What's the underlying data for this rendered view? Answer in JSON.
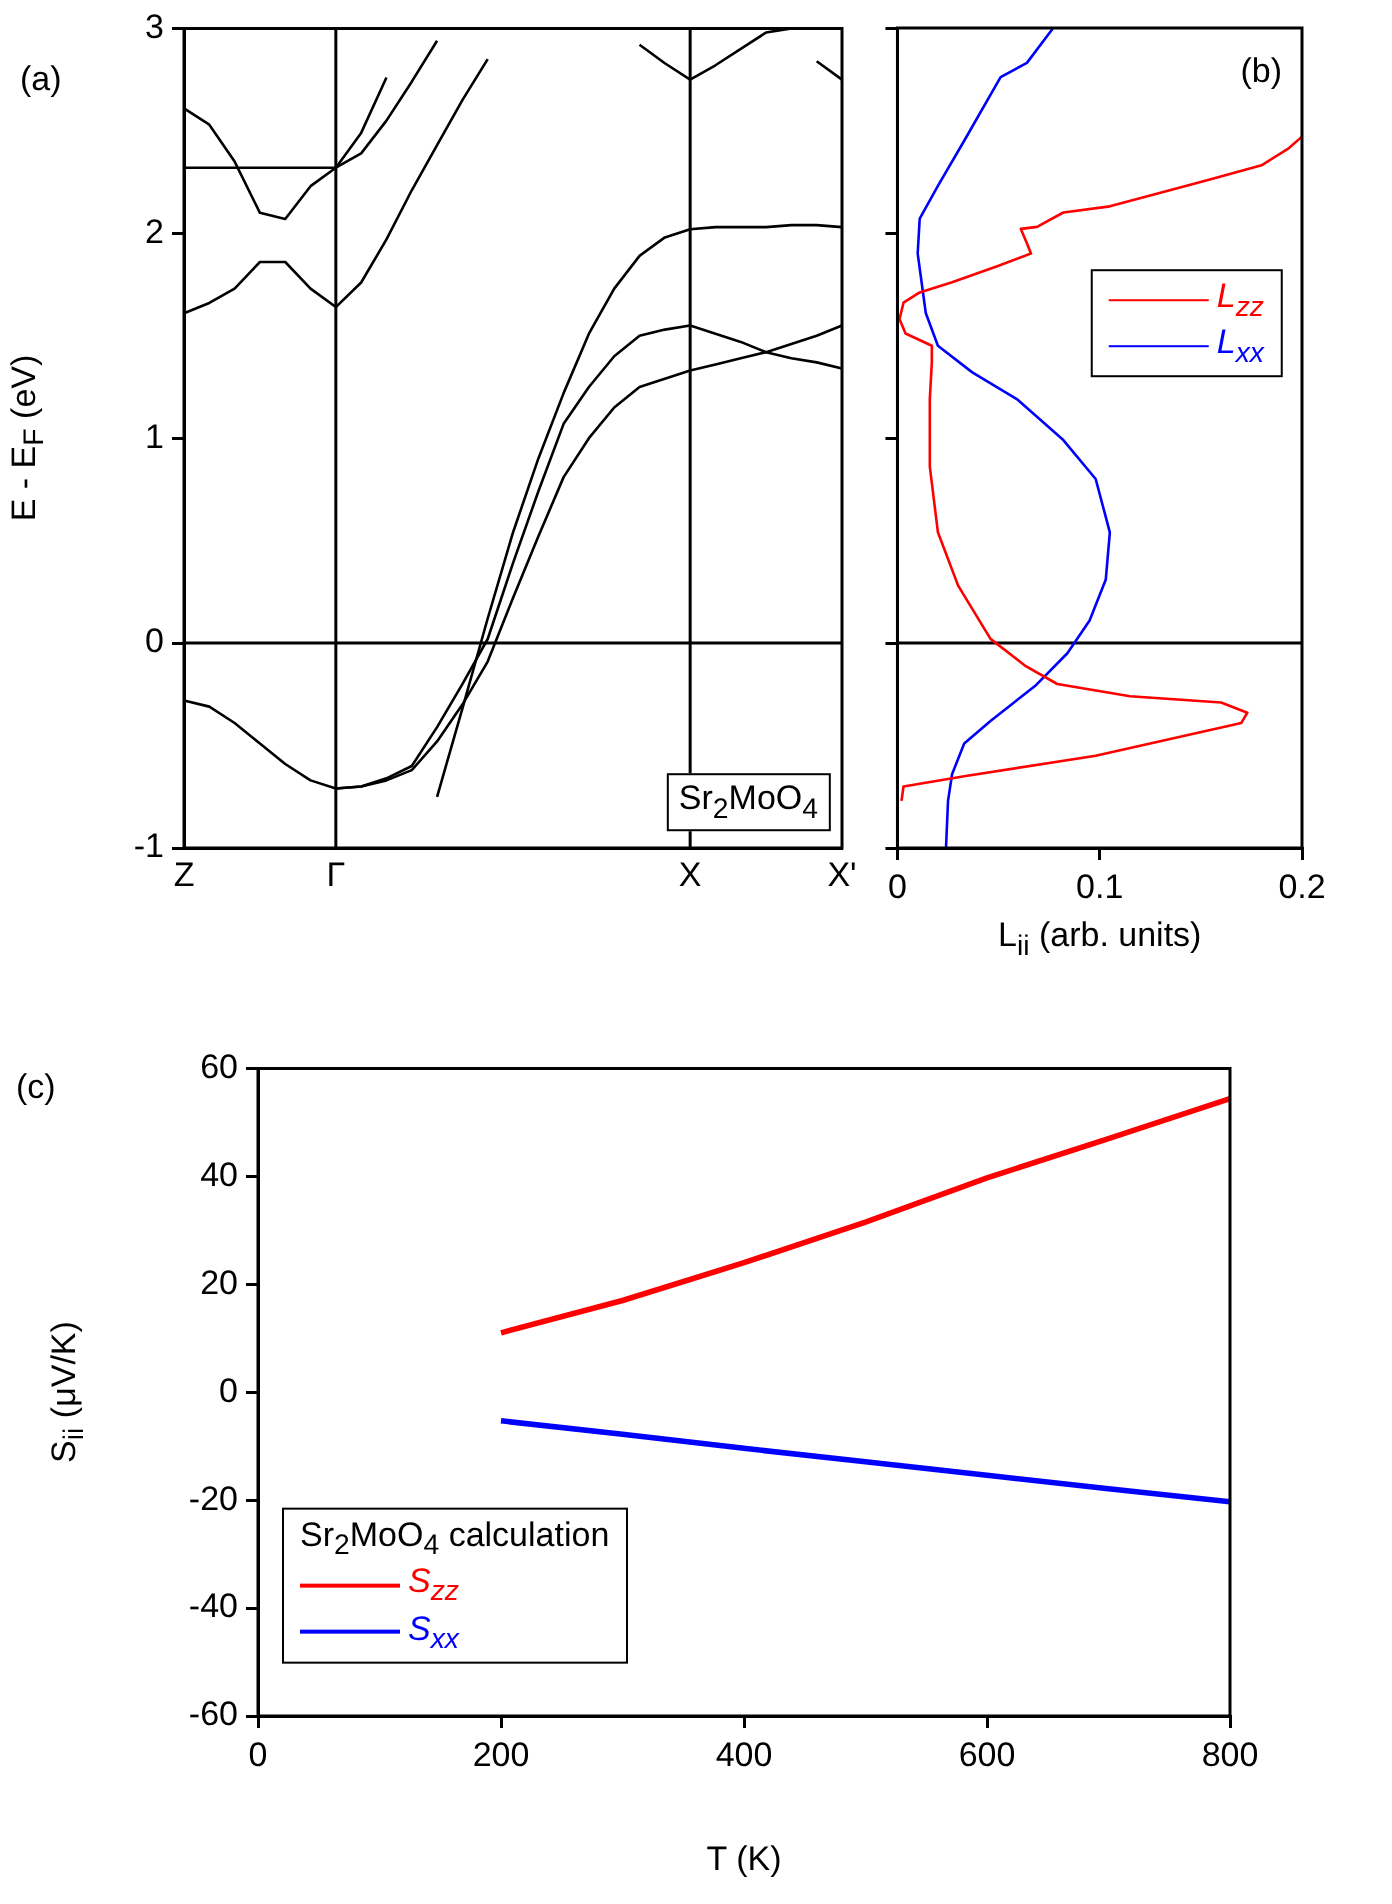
{
  "chart_data": [
    {
      "type": "line",
      "ylabel": "E - E$_{F}$ (eV)",
      "annotations": [
        "(a)",
        "Sr$_{2}$MoO$_{4}$"
      ],
      "categories": [
        "Z",
        null,
        null,
        null,
        null,
        null,
        "Γ",
        null,
        null,
        null,
        null,
        null,
        null,
        null,
        null,
        null,
        null,
        null,
        null,
        null,
        "X",
        null,
        null,
        null,
        null,
        null,
        "X'"
      ],
      "ylim": [
        -1,
        3
      ],
      "yticks": [
        -1,
        0,
        1,
        2,
        3
      ],
      "marker": "none",
      "line_style": "solid",
      "legend": false,
      "ref_lines": [
        {
          "axis": "x",
          "value": "Γ"
        },
        {
          "axis": "x",
          "value": "X"
        },
        {
          "axis": "y",
          "value": 0
        }
      ],
      "series": [
        {
          "color": "#000000",
          "values": [
            -0.28,
            -0.31,
            -0.39,
            -0.49,
            -0.59,
            -0.67,
            -0.71,
            -0.7,
            -0.66,
            -0.6,
            -0.41,
            -0.2,
            0.02,
            0.39,
            0.74,
            1.07,
            1.25,
            1.4,
            1.5,
            1.53,
            1.55,
            1.51,
            1.47,
            1.42,
            1.39,
            1.37,
            1.34
          ]
        },
        {
          "color": "#000000",
          "values": [
            null,
            null,
            null,
            null,
            null,
            null,
            -0.71,
            -0.7,
            -0.67,
            -0.62,
            -0.48,
            -0.3,
            -0.09,
            0.22,
            0.52,
            0.81,
            1.0,
            1.15,
            1.25,
            1.29,
            1.33,
            1.36,
            1.39,
            1.42,
            1.46,
            1.5,
            1.55
          ]
        },
        {
          "color": "#000000",
          "values": [
            null,
            null,
            null,
            null,
            null,
            null,
            null,
            null,
            null,
            null,
            -0.75,
            -0.32,
            0.12,
            0.54,
            0.9,
            1.22,
            1.51,
            1.73,
            1.89,
            1.98,
            2.02,
            2.03,
            2.03,
            2.03,
            2.04,
            2.04,
            2.03
          ]
        },
        {
          "color": "#000000",
          "values": [
            1.61,
            1.66,
            1.73,
            1.86,
            1.86,
            1.73,
            1.64,
            1.76,
            1.97,
            2.21,
            2.43,
            2.65,
            2.85,
            null,
            null,
            null,
            null,
            null,
            null,
            null,
            null,
            null,
            null,
            null,
            null,
            null,
            null
          ]
        },
        {
          "color": "#000000",
          "values": [
            2.61,
            2.53,
            2.35,
            2.1,
            2.07,
            2.23,
            2.32,
            2.39,
            2.55,
            2.74,
            2.94,
            null,
            null,
            null,
            null,
            null,
            null,
            null,
            null,
            null,
            null,
            null,
            null,
            null,
            null,
            null,
            null
          ]
        },
        {
          "color": "#000000",
          "values": [
            2.32,
            2.32,
            2.32,
            2.32,
            2.32,
            2.32,
            2.32,
            2.49,
            2.76,
            null,
            null,
            null,
            null,
            null,
            null,
            null,
            null,
            null,
            null,
            null,
            null,
            null,
            null,
            null,
            null,
            null,
            null
          ]
        },
        {
          "color": "#000000",
          "values": [
            null,
            null,
            null,
            null,
            null,
            null,
            null,
            null,
            null,
            null,
            null,
            null,
            null,
            null,
            null,
            null,
            null,
            null,
            2.92,
            2.83,
            2.75,
            2.82,
            2.9,
            2.98,
            3.0,
            null,
            null
          ]
        },
        {
          "color": "#000000",
          "values": [
            null,
            null,
            null,
            null,
            null,
            null,
            null,
            null,
            null,
            null,
            null,
            null,
            null,
            null,
            null,
            null,
            null,
            null,
            null,
            null,
            null,
            null,
            null,
            null,
            null,
            2.84,
            2.75
          ]
        }
      ]
    },
    {
      "type": "line",
      "xlabel": "L$_{ii}$ (arb. units)",
      "annotations": [
        "(b)"
      ],
      "xlim": [
        0,
        0.2
      ],
      "xticks": [
        0,
        0.1,
        0.2
      ],
      "ylim": [
        -1,
        3
      ],
      "yticks": [
        -1,
        0,
        1,
        2,
        3
      ],
      "tick_labels": "x",
      "marker": "none",
      "line_style": "solid",
      "legend": "right",
      "ref_lines": [
        {
          "axis": "y",
          "value": 0
        }
      ],
      "series": [
        {
          "name": "L$_{zz}$",
          "color": "#ff0000",
          "x": [
            0.2,
            0.193,
            0.18,
            0.154,
            0.124,
            0.105,
            0.082,
            0.069,
            0.061,
            0.064,
            0.066,
            0.05,
            0.027,
            0.011,
            0.003,
            0.001,
            0.004,
            0.017,
            0.017,
            0.016,
            0.016,
            0.02,
            0.03,
            0.046,
            0.063,
            0.079,
            0.115,
            0.16,
            0.173,
            0.17,
            0.098,
            0.033,
            0.003,
            0.002
          ],
          "values": [
            2.47,
            2.41,
            2.33,
            2.26,
            2.18,
            2.13,
            2.1,
            2.03,
            2.02,
            1.95,
            1.9,
            1.84,
            1.76,
            1.71,
            1.66,
            1.58,
            1.51,
            1.45,
            1.37,
            1.19,
            0.86,
            0.54,
            0.28,
            0.02,
            -0.11,
            -0.2,
            -0.26,
            -0.29,
            -0.34,
            -0.39,
            -0.55,
            -0.65,
            -0.7,
            -0.77
          ]
        },
        {
          "name": "L$_{xx}$",
          "color": "#0000ff",
          "x": [
            0.077,
            0.064,
            0.051,
            0.033,
            0.02,
            0.011,
            0.01,
            0.014,
            0.02,
            0.037,
            0.059,
            0.082,
            0.098,
            0.105,
            0.103,
            0.095,
            0.084,
            0.068,
            0.046,
            0.033,
            0.027,
            0.025,
            0.024
          ],
          "values": [
            3.0,
            2.83,
            2.76,
            2.45,
            2.23,
            2.07,
            1.9,
            1.61,
            1.45,
            1.32,
            1.19,
            0.99,
            0.8,
            0.54,
            0.31,
            0.11,
            -0.05,
            -0.21,
            -0.38,
            -0.49,
            -0.64,
            -0.77,
            -1.0
          ]
        }
      ]
    },
    {
      "type": "line",
      "xlabel": "T (K)",
      "ylabel": "S$_{ii}$ (μV/K)",
      "annotations": [
        "(c)"
      ],
      "legend_title": "Sr$_{2}$MoO$_{4}$ calculation",
      "xlim": [
        0,
        800
      ],
      "xticks": [
        0,
        200,
        400,
        600,
        800
      ],
      "ylim": [
        -60,
        60
      ],
      "yticks": [
        -60,
        -40,
        -20,
        0,
        20,
        40,
        60
      ],
      "marker": "none",
      "line_style": "solid",
      "legend": "bottom left",
      "x": [
        200,
        300,
        400,
        500,
        600,
        700,
        800
      ],
      "series": [
        {
          "name": "S$_{zz}$",
          "color": "#ff0000",
          "values": [
            11,
            17,
            24,
            31.5,
            39.7,
            47,
            54.4
          ]
        },
        {
          "name": "S$_{xx}$",
          "color": "#0000ff",
          "values": [
            -5.3,
            -7.8,
            -10.4,
            -12.9,
            -15.4,
            -17.9,
            -20.3
          ]
        }
      ]
    }
  ]
}
